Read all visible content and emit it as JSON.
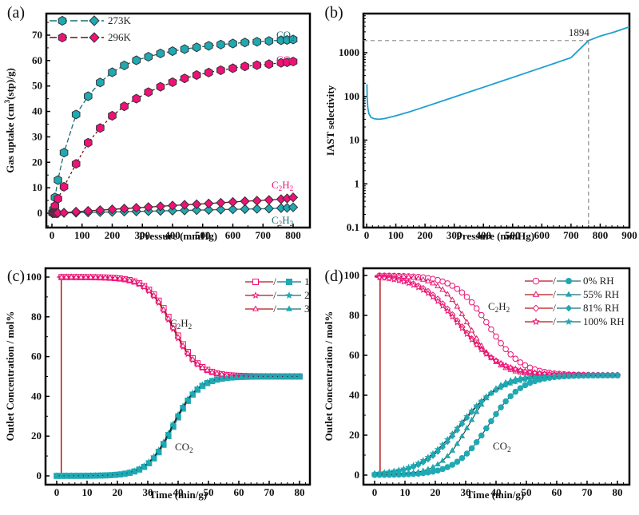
{
  "colors": {
    "teal": "#1fa9b3",
    "teal_dark": "#1a6e74",
    "pink": "#ee1177",
    "maroon": "#6b1010",
    "red_line": "#b31818",
    "blue_line": "#1e9fcf",
    "grey_dash": "#888888"
  },
  "chart_data": [
    {
      "panel": "(a)",
      "type": "scatter",
      "xlabel": "Pressure (mmHg)",
      "ylabel": "Gas uptake (cm3(stp)/g)",
      "xlim": [
        0,
        800
      ],
      "ylim": [
        -5,
        75
      ],
      "xticks": [
        "0",
        "100",
        "200",
        "300",
        "400",
        "500",
        "600",
        "700",
        "800"
      ],
      "yticks": [
        "0",
        "10",
        "20",
        "30",
        "40",
        "50",
        "60",
        "70"
      ],
      "legend": {
        "position": "top-left",
        "entries": [
          "273K",
          "296K"
        ]
      },
      "annotations": [
        "CO2",
        "CO2",
        "C2H2",
        "C2H2"
      ],
      "series": [
        {
          "name": "CO2 273K",
          "marker": "hexagon",
          "x": [
            2,
            5,
            10,
            20,
            40,
            80,
            120,
            160,
            200,
            240,
            280,
            320,
            360,
            400,
            440,
            480,
            520,
            560,
            600,
            640,
            680,
            720,
            760,
            780,
            800
          ],
          "y": [
            0.2,
            1.5,
            6.2,
            13,
            23.8,
            38.8,
            46,
            51.4,
            55.4,
            58.1,
            60.1,
            61.5,
            62.8,
            63.7,
            64.5,
            65.2,
            65.8,
            66.3,
            66.7,
            67.1,
            67.4,
            67.7,
            68,
            68.1,
            68.3
          ]
        },
        {
          "name": "CO2 296K",
          "marker": "hexagon",
          "x": [
            2,
            5,
            10,
            20,
            40,
            80,
            120,
            160,
            200,
            240,
            280,
            320,
            360,
            400,
            440,
            480,
            520,
            560,
            600,
            640,
            680,
            720,
            760,
            780,
            800
          ],
          "y": [
            0.1,
            0.5,
            2.8,
            5.7,
            10.4,
            19.4,
            27.7,
            33.5,
            38.3,
            42,
            45,
            47.6,
            49.7,
            51.5,
            53,
            54.3,
            55.3,
            56.2,
            57,
            57.7,
            58.2,
            58.6,
            59.1,
            59.3,
            59.6
          ]
        },
        {
          "name": "C2H2 273K",
          "marker": "diamond",
          "x": [
            2,
            5,
            10,
            15,
            20,
            40,
            80,
            120,
            160,
            200,
            240,
            280,
            320,
            360,
            400,
            440,
            480,
            520,
            560,
            600,
            640,
            680,
            720,
            760,
            780,
            800
          ],
          "y": [
            0,
            0,
            0,
            0,
            0,
            0.1,
            0.2,
            0.3,
            0.4,
            0.5,
            0.6,
            0.7,
            0.8,
            0.9,
            1.0,
            1.1,
            1.2,
            1.3,
            1.4,
            1.5,
            1.6,
            1.7,
            1.8,
            2.0,
            2.1,
            2.3
          ]
        },
        {
          "name": "C2H2 296K",
          "marker": "diamond",
          "x": [
            2,
            5,
            10,
            15,
            20,
            40,
            80,
            120,
            160,
            200,
            240,
            280,
            320,
            360,
            400,
            440,
            480,
            520,
            560,
            600,
            640,
            680,
            720,
            760,
            780,
            800
          ],
          "y": [
            0,
            0,
            0,
            0,
            0.1,
            0.2,
            0.6,
            0.9,
            1.2,
            1.5,
            1.8,
            2.1,
            2.4,
            2.7,
            3.0,
            3.3,
            3.5,
            3.8,
            4.1,
            4.4,
            4.7,
            4.9,
            5.2,
            5.5,
            5.8,
            6.2
          ]
        }
      ]
    },
    {
      "panel": "(b)",
      "type": "line",
      "xlabel": "Pressure (mmHg)",
      "ylabel": "IAST selectivity",
      "xlim": [
        0,
        900
      ],
      "ylim": [
        0.1,
        10000
      ],
      "yscale": "log",
      "xticks": [
        "0",
        "100",
        "200",
        "300",
        "400",
        "500",
        "600",
        "700",
        "800",
        "900"
      ],
      "yticks": [
        "0.1",
        "1",
        "10",
        "100",
        "1000"
      ],
      "annotations": [
        "1894"
      ],
      "marker_point": {
        "x": 760,
        "y": 1894
      },
      "series": [
        {
          "name": "IAST selectivity",
          "x": [
            1,
            2,
            4,
            8,
            15,
            25,
            40,
            60,
            100,
            150,
            200,
            250,
            300,
            350,
            400,
            450,
            500,
            550,
            600,
            650,
            700,
            760,
            800,
            850,
            900
          ],
          "y": [
            190,
            90,
            55,
            40,
            33,
            31,
            30,
            31,
            36,
            45,
            58,
            75,
            97,
            125,
            162,
            210,
            272,
            352,
            455,
            590,
            770,
            1894,
            2400,
            3000,
            3900
          ]
        }
      ]
    },
    {
      "panel": "(c)",
      "type": "line",
      "xlabel": "Time (min/g)",
      "ylabel": "Outlet Concentration / mol%",
      "xlim": [
        -2,
        82
      ],
      "ylim": [
        -3,
        103
      ],
      "xticks": [
        "0",
        "10",
        "20",
        "30",
        "40",
        "50",
        "60",
        "70",
        "80"
      ],
      "yticks": [
        "0",
        "20",
        "40",
        "60",
        "80",
        "100"
      ],
      "legend": {
        "position": "top-right",
        "entries": [
          "1",
          "2",
          "3"
        ]
      },
      "annotations": [
        "C2H2",
        "CO2"
      ],
      "series": [
        {
          "name": "C2H2 cycle 1",
          "midpoint": 38.5,
          "plateau": 50
        },
        {
          "name": "C2H2 cycle 2",
          "midpoint": 38.0,
          "plateau": 50
        },
        {
          "name": "C2H2 cycle 3",
          "midpoint": 38.2,
          "plateau": 50
        },
        {
          "name": "CO2 cycle 1",
          "midpoint": 38.5,
          "plateau": 50
        },
        {
          "name": "CO2 cycle 2",
          "midpoint": 38.0,
          "plateau": 50
        },
        {
          "name": "CO2 cycle 3",
          "midpoint": 38.2,
          "plateau": 50
        }
      ]
    },
    {
      "panel": "(d)",
      "type": "line",
      "xlabel": "Time (min/g)",
      "ylabel": "Outlet Concentration / mol%",
      "xlim": [
        -2,
        82
      ],
      "ylim": [
        -3,
        103
      ],
      "xticks": [
        "0",
        "10",
        "20",
        "30",
        "40",
        "50",
        "60",
        "70",
        "80"
      ],
      "yticks": [
        "0",
        "20",
        "40",
        "60",
        "80",
        "100"
      ],
      "legend": {
        "position": "top-right",
        "entries": [
          "0% RH",
          "55% RH",
          "81% RH",
          "100% RH"
        ]
      },
      "annotations": [
        "C2H2",
        "CO2"
      ],
      "series": [
        {
          "name": "0% RH",
          "marker": "circle",
          "midpoint": 37.5,
          "plateau": 50
        },
        {
          "name": "55% RH",
          "marker": "triangle",
          "midpoint": 31.0,
          "plateau": 50
        },
        {
          "name": "81% RH",
          "marker": "diamond",
          "midpoint": 28.5,
          "plateau": 50
        },
        {
          "name": "100% RH",
          "marker": "star",
          "midpoint": 28.0,
          "plateau": 50
        }
      ]
    }
  ],
  "text": {
    "panel_a": "(a)",
    "panel_b": "(b)",
    "panel_c": "(c)",
    "panel_d": "(d)",
    "a_leg1": "273K",
    "a_leg2": "296K",
    "co2": "CO",
    "c2h2_c": "C",
    "c2h2_h": "H",
    "sub2": "2",
    "b_ann": "1894",
    "c_leg": [
      "1",
      "2",
      "3"
    ],
    "d_leg": [
      "0% RH",
      "55% RH",
      "81% RH",
      "100% RH"
    ],
    "a_xlabel": "Pressure (mmHg)",
    "a_ylabel_pre": "Gas uptake (cm",
    "a_ylabel_sup": "3",
    "a_ylabel_post": "(stp)/g)",
    "b_xlabel": "Pressure (mmHg)",
    "b_ylabel": "IAST selectivity",
    "c_xlabel": "Time (min/g)",
    "c_ylabel": "Outlet Concentration / mol%",
    "d_xlabel": "Time (min/g)",
    "d_ylabel": "Outlet Concentration / mol%"
  }
}
